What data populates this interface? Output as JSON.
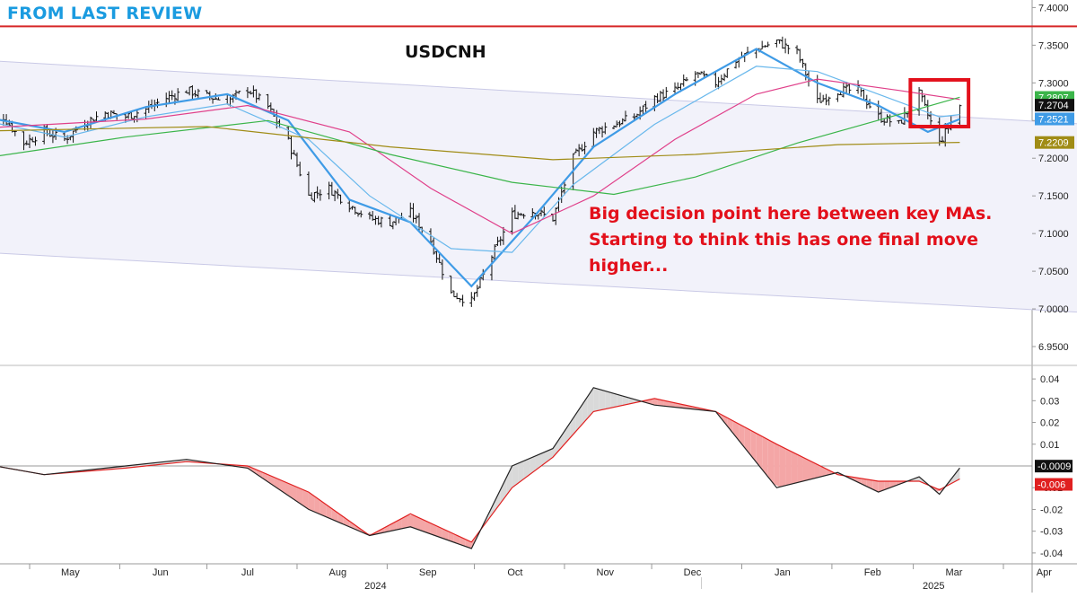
{
  "header": {
    "banner": "FROM LAST REVIEW",
    "symbol": "USDCNH"
  },
  "annotation": {
    "lines": [
      "Big decision point here between key MAs.",
      "Starting to think this has one final move",
      "higher..."
    ]
  },
  "colors": {
    "banner": "#1a9be0",
    "annotation": "#e3101b",
    "resistance_line": "#d62728",
    "highlight_box": "#e3101b",
    "ma_fast": "#3f9be6",
    "ma_mid": "#69b8ec",
    "ma_50": "#e0408a",
    "ma_100": "#3bb54a",
    "ma_200": "#a08c16",
    "channel_fill": "#f2f2fa",
    "channel_line": "#c9c9e6",
    "osc_fast": "#222222",
    "osc_slow": "#e02020",
    "osc_fill_up": "#d9d9d9",
    "osc_fill_down": "#f4a6a6"
  },
  "chart_data": {
    "type": "ohlc-bar",
    "symbol": "USDCNH",
    "price_axis": {
      "ylim": [
        6.925,
        7.41
      ],
      "ticks": [
        "7.4000",
        "7.3500",
        "7.3000",
        "7.2500",
        "7.2000",
        "7.1500",
        "7.1000",
        "7.0500",
        "7.0000",
        "6.9500"
      ],
      "tick_values": [
        7.4,
        7.35,
        7.3,
        7.25,
        7.2,
        7.15,
        7.1,
        7.05,
        7.0,
        6.95
      ],
      "last_value_labels": [
        {
          "text": "7.2807",
          "value": 7.2807,
          "color": "#3bb54a"
        },
        {
          "text": "7.2704",
          "value": 7.2704,
          "color": "#ffffff"
        },
        {
          "text": "7.2521",
          "value": 7.2521,
          "color": "#3f9be6"
        },
        {
          "text": "7.2209",
          "value": 7.2209,
          "color": "#a08c16"
        }
      ]
    },
    "oscillator_axis": {
      "ylim": [
        -0.045,
        0.045
      ],
      "ticks": [
        "0.04",
        "0.03",
        "0.02",
        "0.01",
        "-0.01",
        "-0.02",
        "-0.03",
        "-0.04"
      ],
      "tick_values": [
        0.04,
        0.03,
        0.02,
        0.01,
        -0.01,
        -0.02,
        -0.03,
        -0.04
      ],
      "last_value_labels": [
        {
          "text": "-0.0009",
          "value": -0.0009,
          "color": "#111111"
        },
        {
          "text": "-0.006",
          "value": -0.006,
          "color": "#e02020"
        }
      ]
    },
    "x_axis": {
      "months": [
        "May",
        "Jun",
        "Jul",
        "Aug",
        "Sep",
        "Oct",
        "Nov",
        "Dec",
        "Jan",
        "Feb",
        "Mar",
        "Apr"
      ],
      "years": [
        "2024",
        "2025"
      ]
    },
    "resistance_level": 7.375,
    "channel": {
      "upper": [
        {
          "x": "2024-04-15",
          "y": 7.33
        },
        {
          "x": "2025-04-30",
          "y": 7.245
        }
      ],
      "lower": [
        {
          "x": "2024-04-15",
          "y": 7.075
        },
        {
          "x": "2025-04-30",
          "y": 6.995
        }
      ]
    },
    "highlight_box": {
      "x": [
        "2025-02-28",
        "2025-03-20"
      ],
      "y": [
        7.242,
        7.304
      ]
    },
    "close_path": [
      [
        "2024-04-15",
        7.245
      ],
      [
        "2024-04-22",
        7.255
      ],
      [
        "2024-04-29",
        7.22
      ],
      [
        "2024-05-06",
        7.235
      ],
      [
        "2024-05-13",
        7.225
      ],
      [
        "2024-05-20",
        7.248
      ],
      [
        "2024-05-27",
        7.26
      ],
      [
        "2024-06-03",
        7.255
      ],
      [
        "2024-06-10",
        7.265
      ],
      [
        "2024-06-17",
        7.28
      ],
      [
        "2024-06-24",
        7.29
      ],
      [
        "2024-07-01",
        7.282
      ],
      [
        "2024-07-08",
        7.276
      ],
      [
        "2024-07-15",
        7.292
      ],
      [
        "2024-07-22",
        7.268
      ],
      [
        "2024-07-29",
        7.222
      ],
      [
        "2024-08-05",
        7.15
      ],
      [
        "2024-08-12",
        7.16
      ],
      [
        "2024-08-19",
        7.138
      ],
      [
        "2024-08-26",
        7.12
      ],
      [
        "2024-09-02",
        7.115
      ],
      [
        "2024-09-09",
        7.128
      ],
      [
        "2024-09-16",
        7.09
      ],
      [
        "2024-09-23",
        7.02
      ],
      [
        "2024-09-30",
        7.01
      ],
      [
        "2024-10-07",
        7.07
      ],
      [
        "2024-10-14",
        7.125
      ],
      [
        "2024-10-21",
        7.13
      ],
      [
        "2024-10-28",
        7.12
      ],
      [
        "2024-11-04",
        7.2
      ],
      [
        "2024-11-11",
        7.235
      ],
      [
        "2024-11-18",
        7.245
      ],
      [
        "2024-11-25",
        7.255
      ],
      [
        "2024-12-02",
        7.28
      ],
      [
        "2024-12-09",
        7.29
      ],
      [
        "2024-12-16",
        7.312
      ],
      [
        "2024-12-23",
        7.3
      ],
      [
        "2024-12-30",
        7.33
      ],
      [
        "2025-01-06",
        7.345
      ],
      [
        "2025-01-13",
        7.355
      ],
      [
        "2025-01-20",
        7.34
      ],
      [
        "2025-01-27",
        7.275
      ],
      [
        "2025-02-03",
        7.29
      ],
      [
        "2025-02-10",
        7.29
      ],
      [
        "2025-02-17",
        7.255
      ],
      [
        "2025-02-24",
        7.245
      ],
      [
        "2025-03-03",
        7.285
      ],
      [
        "2025-03-10",
        7.22
      ],
      [
        "2025-03-17",
        7.27
      ]
    ],
    "moving_averages": [
      {
        "label": "fast",
        "color": "#3f9be6",
        "points": [
          [
            "2024-04-15",
            7.255
          ],
          [
            "2024-05-13",
            7.235
          ],
          [
            "2024-06-10",
            7.268
          ],
          [
            "2024-07-08",
            7.285
          ],
          [
            "2024-07-29",
            7.25
          ],
          [
            "2024-08-19",
            7.145
          ],
          [
            "2024-09-09",
            7.115
          ],
          [
            "2024-09-30",
            7.03
          ],
          [
            "2024-10-21",
            7.12
          ],
          [
            "2024-11-11",
            7.215
          ],
          [
            "2024-12-09",
            7.285
          ],
          [
            "2025-01-06",
            7.345
          ],
          [
            "2025-01-27",
            7.3
          ],
          [
            "2025-02-17",
            7.27
          ],
          [
            "2025-03-06",
            7.235
          ],
          [
            "2025-03-17",
            7.252
          ]
        ]
      },
      {
        "label": "mid",
        "color": "#69b8ec",
        "points": [
          [
            "2024-04-15",
            7.25
          ],
          [
            "2024-05-13",
            7.228
          ],
          [
            "2024-06-10",
            7.255
          ],
          [
            "2024-07-08",
            7.272
          ],
          [
            "2024-08-05",
            7.225
          ],
          [
            "2024-08-26",
            7.15
          ],
          [
            "2024-09-23",
            7.08
          ],
          [
            "2024-10-14",
            7.075
          ],
          [
            "2024-11-04",
            7.165
          ],
          [
            "2024-12-02",
            7.245
          ],
          [
            "2025-01-06",
            7.322
          ],
          [
            "2025-01-27",
            7.315
          ],
          [
            "2025-02-17",
            7.285
          ],
          [
            "2025-03-10",
            7.255
          ],
          [
            "2025-03-17",
            7.258
          ]
        ]
      },
      {
        "label": "ma50",
        "color": "#e0408a",
        "points": [
          [
            "2024-04-15",
            7.24
          ],
          [
            "2024-06-10",
            7.252
          ],
          [
            "2024-07-15",
            7.27
          ],
          [
            "2024-08-19",
            7.235
          ],
          [
            "2024-09-16",
            7.16
          ],
          [
            "2024-10-14",
            7.1
          ],
          [
            "2024-11-11",
            7.15
          ],
          [
            "2024-12-09",
            7.225
          ],
          [
            "2025-01-06",
            7.285
          ],
          [
            "2025-01-27",
            7.305
          ],
          [
            "2025-02-24",
            7.29
          ],
          [
            "2025-03-17",
            7.278
          ]
        ]
      },
      {
        "label": "ma100",
        "color": "#3bb54a",
        "points": [
          [
            "2024-04-15",
            7.2
          ],
          [
            "2024-06-03",
            7.228
          ],
          [
            "2024-07-22",
            7.25
          ],
          [
            "2024-09-02",
            7.205
          ],
          [
            "2024-10-14",
            7.168
          ],
          [
            "2024-11-18",
            7.152
          ],
          [
            "2024-12-16",
            7.175
          ],
          [
            "2025-01-20",
            7.22
          ],
          [
            "2025-02-24",
            7.258
          ],
          [
            "2025-03-17",
            7.281
          ]
        ]
      },
      {
        "label": "ma200",
        "color": "#a08c16",
        "points": [
          [
            "2024-04-15",
            7.236
          ],
          [
            "2024-07-01",
            7.242
          ],
          [
            "2024-09-02",
            7.215
          ],
          [
            "2024-10-28",
            7.198
          ],
          [
            "2024-12-16",
            7.205
          ],
          [
            "2025-02-03",
            7.218
          ],
          [
            "2025-03-17",
            7.221
          ]
        ]
      }
    ],
    "oscillator": {
      "fast": [
        [
          "2024-04-15",
          0.001
        ],
        [
          "2024-05-06",
          -0.004
        ],
        [
          "2024-06-03",
          0.0
        ],
        [
          "2024-06-24",
          0.003
        ],
        [
          "2024-07-15",
          -0.001
        ],
        [
          "2024-08-05",
          -0.02
        ],
        [
          "2024-08-26",
          -0.032
        ],
        [
          "2024-09-09",
          -0.028
        ],
        [
          "2024-09-30",
          -0.038
        ],
        [
          "2024-10-14",
          0.0
        ],
        [
          "2024-10-28",
          0.008
        ],
        [
          "2024-11-11",
          0.036
        ],
        [
          "2024-12-02",
          0.028
        ],
        [
          "2024-12-23",
          0.025
        ],
        [
          "2025-01-13",
          -0.01
        ],
        [
          "2025-02-03",
          -0.003
        ],
        [
          "2025-02-17",
          -0.012
        ],
        [
          "2025-03-03",
          -0.005
        ],
        [
          "2025-03-10",
          -0.013
        ],
        [
          "2025-03-17",
          -0.0009
        ]
      ],
      "slow": [
        [
          "2024-04-15",
          0.001
        ],
        [
          "2024-05-06",
          -0.004
        ],
        [
          "2024-06-03",
          -0.001
        ],
        [
          "2024-06-24",
          0.002
        ],
        [
          "2024-07-15",
          0.0
        ],
        [
          "2024-08-05",
          -0.012
        ],
        [
          "2024-08-26",
          -0.032
        ],
        [
          "2024-09-09",
          -0.022
        ],
        [
          "2024-09-30",
          -0.035
        ],
        [
          "2024-10-14",
          -0.01
        ],
        [
          "2024-10-28",
          0.004
        ],
        [
          "2024-11-11",
          0.025
        ],
        [
          "2024-12-02",
          0.031
        ],
        [
          "2024-12-23",
          0.025
        ],
        [
          "2025-01-13",
          0.01
        ],
        [
          "2025-02-03",
          -0.004
        ],
        [
          "2025-02-17",
          -0.007
        ],
        [
          "2025-03-03",
          -0.007
        ],
        [
          "2025-03-10",
          -0.011
        ],
        [
          "2025-03-17",
          -0.006
        ]
      ]
    }
  }
}
